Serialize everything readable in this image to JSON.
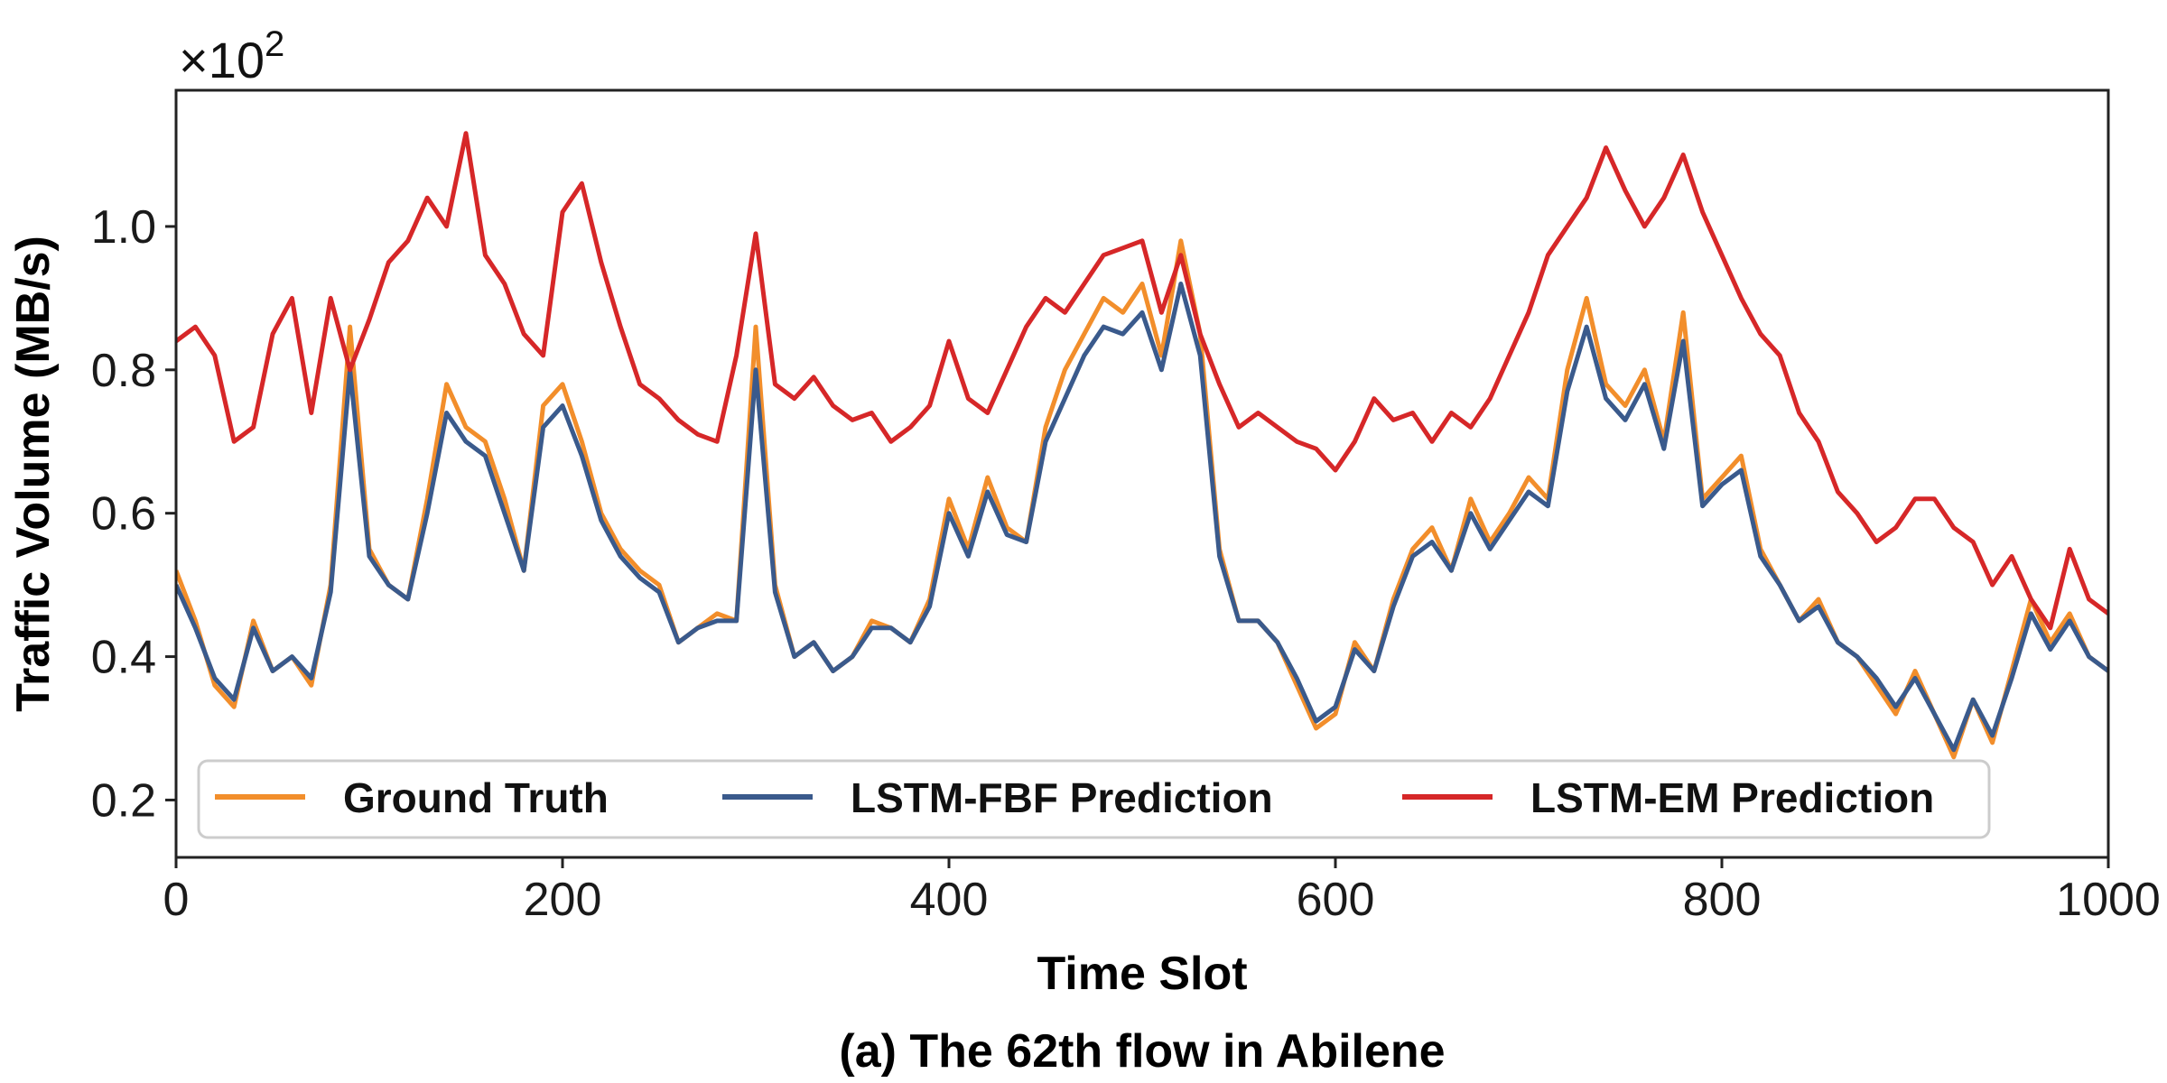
{
  "chart_data": {
    "type": "line",
    "xlabel": "Time Slot",
    "ylabel": "Traffic Volume (MB/s)",
    "caption": "(a) The 62th flow in Abilene",
    "y_multiplier": {
      "base": "×10",
      "exponent": "2"
    },
    "xlim": [
      0,
      1000
    ],
    "ylim": [
      0.12,
      1.19
    ],
    "x_ticks": [
      0,
      200,
      400,
      600,
      800,
      1000
    ],
    "x_tick_labels": [
      "0",
      "200",
      "400",
      "600",
      "800",
      "1000"
    ],
    "y_ticks": [
      0.2,
      0.4,
      0.6,
      0.8,
      1.0
    ],
    "y_tick_labels": [
      "0.2",
      "0.4",
      "0.6",
      "0.8",
      "1.0"
    ],
    "grid": false,
    "legend_position": "bottom",
    "series": [
      {
        "name": "Ground Truth",
        "color": "#f28e2b",
        "x": [
          0,
          10,
          20,
          30,
          40,
          50,
          60,
          70,
          80,
          90,
          100,
          110,
          120,
          130,
          140,
          150,
          160,
          170,
          180,
          190,
          200,
          210,
          220,
          230,
          240,
          250,
          260,
          270,
          280,
          290,
          300,
          310,
          320,
          330,
          340,
          350,
          360,
          370,
          380,
          390,
          400,
          410,
          420,
          430,
          440,
          450,
          460,
          470,
          480,
          490,
          500,
          510,
          520,
          530,
          540,
          550,
          560,
          570,
          580,
          590,
          600,
          610,
          620,
          630,
          640,
          650,
          660,
          670,
          680,
          690,
          700,
          710,
          720,
          730,
          740,
          750,
          760,
          770,
          780,
          790,
          800,
          810,
          820,
          830,
          840,
          850,
          860,
          870,
          880,
          890,
          900,
          910,
          920,
          930,
          940,
          950,
          960,
          970,
          980,
          990,
          1000
        ],
        "y": [
          0.52,
          0.45,
          0.36,
          0.33,
          0.45,
          0.38,
          0.4,
          0.36,
          0.5,
          0.86,
          0.55,
          0.5,
          0.48,
          0.62,
          0.78,
          0.72,
          0.7,
          0.62,
          0.52,
          0.75,
          0.78,
          0.7,
          0.6,
          0.55,
          0.52,
          0.5,
          0.42,
          0.44,
          0.46,
          0.45,
          0.86,
          0.5,
          0.4,
          0.42,
          0.38,
          0.4,
          0.45,
          0.44,
          0.42,
          0.48,
          0.62,
          0.55,
          0.65,
          0.58,
          0.56,
          0.72,
          0.8,
          0.85,
          0.9,
          0.88,
          0.92,
          0.82,
          0.98,
          0.85,
          0.55,
          0.45,
          0.45,
          0.42,
          0.36,
          0.3,
          0.32,
          0.42,
          0.38,
          0.48,
          0.55,
          0.58,
          0.52,
          0.62,
          0.56,
          0.6,
          0.65,
          0.62,
          0.8,
          0.9,
          0.78,
          0.75,
          0.8,
          0.7,
          0.88,
          0.62,
          0.65,
          0.68,
          0.55,
          0.5,
          0.45,
          0.48,
          0.42,
          0.4,
          0.36,
          0.32,
          0.38,
          0.32,
          0.26,
          0.34,
          0.28,
          0.38,
          0.48,
          0.42,
          0.46,
          0.4,
          0.38
        ]
      },
      {
        "name": "LSTM-FBF Prediction",
        "color": "#3a5a8c",
        "x": [
          0,
          10,
          20,
          30,
          40,
          50,
          60,
          70,
          80,
          90,
          100,
          110,
          120,
          130,
          140,
          150,
          160,
          170,
          180,
          190,
          200,
          210,
          220,
          230,
          240,
          250,
          260,
          270,
          280,
          290,
          300,
          310,
          320,
          330,
          340,
          350,
          360,
          370,
          380,
          390,
          400,
          410,
          420,
          430,
          440,
          450,
          460,
          470,
          480,
          490,
          500,
          510,
          520,
          530,
          540,
          550,
          560,
          570,
          580,
          590,
          600,
          610,
          620,
          630,
          640,
          650,
          660,
          670,
          680,
          690,
          700,
          710,
          720,
          730,
          740,
          750,
          760,
          770,
          780,
          790,
          800,
          810,
          820,
          830,
          840,
          850,
          860,
          870,
          880,
          890,
          900,
          910,
          920,
          930,
          940,
          950,
          960,
          970,
          980,
          990,
          1000
        ],
        "y": [
          0.5,
          0.44,
          0.37,
          0.34,
          0.44,
          0.38,
          0.4,
          0.37,
          0.49,
          0.8,
          0.54,
          0.5,
          0.48,
          0.6,
          0.74,
          0.7,
          0.68,
          0.6,
          0.52,
          0.72,
          0.75,
          0.68,
          0.59,
          0.54,
          0.51,
          0.49,
          0.42,
          0.44,
          0.45,
          0.45,
          0.8,
          0.49,
          0.4,
          0.42,
          0.38,
          0.4,
          0.44,
          0.44,
          0.42,
          0.47,
          0.6,
          0.54,
          0.63,
          0.57,
          0.56,
          0.7,
          0.76,
          0.82,
          0.86,
          0.85,
          0.88,
          0.8,
          0.92,
          0.82,
          0.54,
          0.45,
          0.45,
          0.42,
          0.37,
          0.31,
          0.33,
          0.41,
          0.38,
          0.47,
          0.54,
          0.56,
          0.52,
          0.6,
          0.55,
          0.59,
          0.63,
          0.61,
          0.77,
          0.86,
          0.76,
          0.73,
          0.78,
          0.69,
          0.84,
          0.61,
          0.64,
          0.66,
          0.54,
          0.5,
          0.45,
          0.47,
          0.42,
          0.4,
          0.37,
          0.33,
          0.37,
          0.32,
          0.27,
          0.34,
          0.29,
          0.37,
          0.46,
          0.41,
          0.45,
          0.4,
          0.38
        ]
      },
      {
        "name": "LSTM-EM Prediction",
        "color": "#d62728",
        "x": [
          0,
          10,
          20,
          30,
          40,
          50,
          60,
          70,
          80,
          90,
          100,
          110,
          120,
          130,
          140,
          150,
          160,
          170,
          180,
          190,
          200,
          210,
          220,
          230,
          240,
          250,
          260,
          270,
          280,
          290,
          300,
          310,
          320,
          330,
          340,
          350,
          360,
          370,
          380,
          390,
          400,
          410,
          420,
          430,
          440,
          450,
          460,
          470,
          480,
          490,
          500,
          510,
          520,
          530,
          540,
          550,
          560,
          570,
          580,
          590,
          600,
          610,
          620,
          630,
          640,
          650,
          660,
          670,
          680,
          690,
          700,
          710,
          720,
          730,
          740,
          750,
          760,
          770,
          780,
          790,
          800,
          810,
          820,
          830,
          840,
          850,
          860,
          870,
          880,
          890,
          900,
          910,
          920,
          930,
          940,
          950,
          960,
          970,
          980,
          990,
          1000
        ],
        "y": [
          0.84,
          0.86,
          0.82,
          0.7,
          0.72,
          0.85,
          0.9,
          0.74,
          0.9,
          0.8,
          0.87,
          0.95,
          0.98,
          1.04,
          1.0,
          1.13,
          0.96,
          0.92,
          0.85,
          0.82,
          1.02,
          1.06,
          0.95,
          0.86,
          0.78,
          0.76,
          0.73,
          0.71,
          0.7,
          0.82,
          0.99,
          0.78,
          0.76,
          0.79,
          0.75,
          0.73,
          0.74,
          0.7,
          0.72,
          0.75,
          0.84,
          0.76,
          0.74,
          0.8,
          0.86,
          0.9,
          0.88,
          0.92,
          0.96,
          0.97,
          0.98,
          0.88,
          0.96,
          0.85,
          0.78,
          0.72,
          0.74,
          0.72,
          0.7,
          0.69,
          0.66,
          0.7,
          0.76,
          0.73,
          0.74,
          0.7,
          0.74,
          0.72,
          0.76,
          0.82,
          0.88,
          0.96,
          1.0,
          1.04,
          1.11,
          1.05,
          1.0,
          1.04,
          1.1,
          1.02,
          0.96,
          0.9,
          0.85,
          0.82,
          0.74,
          0.7,
          0.63,
          0.6,
          0.56,
          0.58,
          0.62,
          0.62,
          0.58,
          0.56,
          0.5,
          0.54,
          0.48,
          0.44,
          0.55,
          0.48,
          0.46
        ]
      }
    ]
  }
}
